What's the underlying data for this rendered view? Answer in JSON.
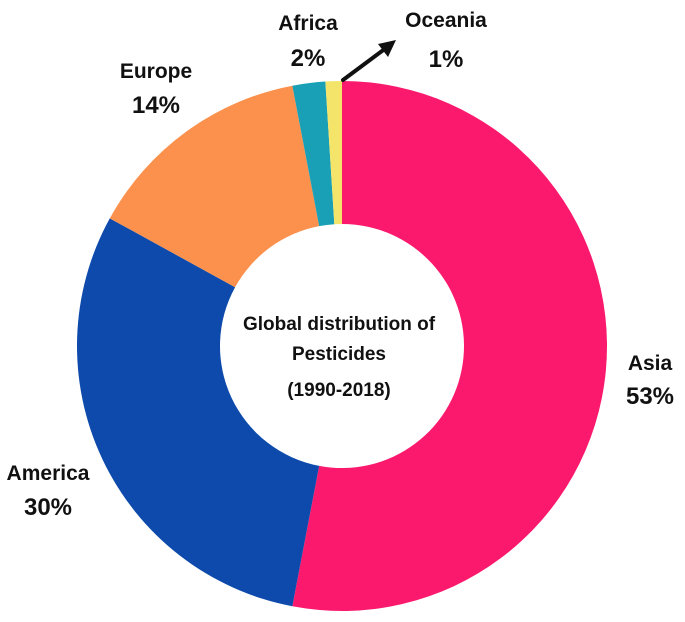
{
  "chart_data": {
    "type": "pie",
    "donut": true,
    "center_text": [
      "Global distribution of",
      "Pesticides",
      "(1990-2018)"
    ],
    "slices": [
      {
        "category": "Asia",
        "value": 53,
        "label": "53%",
        "color": "#FB196E"
      },
      {
        "category": "America",
        "value": 30,
        "label": "30%",
        "color": "#0D4AAB"
      },
      {
        "category": "Europe",
        "value": 14,
        "label": "14%",
        "color": "#FB914C"
      },
      {
        "category": "Africa",
        "value": 2,
        "label": "2%",
        "color": "#1AA0B6"
      },
      {
        "category": "Oceania",
        "value": 1,
        "label": "1%",
        "color": "#F4E56A"
      }
    ],
    "start_angle": "12 o'clock, clockwise",
    "legend": "none (labels placed beside slices)"
  }
}
